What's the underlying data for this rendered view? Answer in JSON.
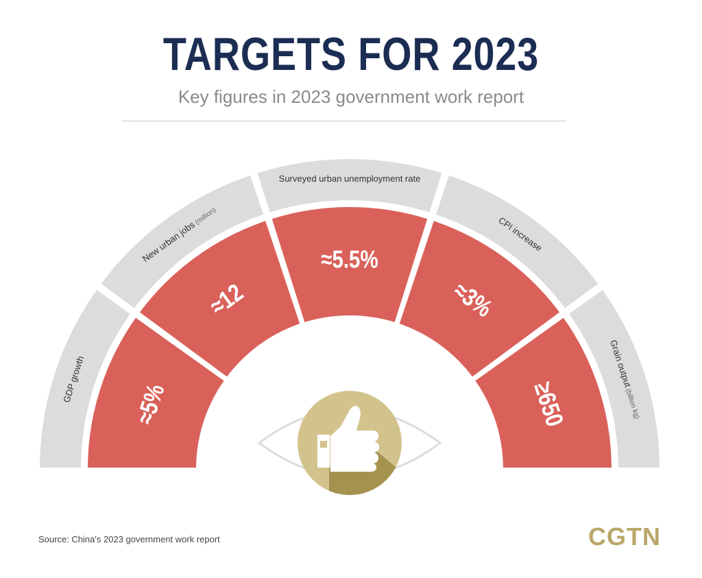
{
  "header": {
    "title": "TARGETS FOR 2023",
    "subtitle": "Key figures in 2023 government work report"
  },
  "targets": [
    {
      "label": "GDP growth",
      "unit": "",
      "value": "≈5%"
    },
    {
      "label": "New urban jobs",
      "unit": "(million)",
      "value": "≈12"
    },
    {
      "label": "Surveyed urban unemployment rate",
      "unit": "",
      "value": "≈5.5%"
    },
    {
      "label": "CPI increase",
      "unit": "",
      "value": "≈3%"
    },
    {
      "label": "Grain output",
      "unit": "(billion kg)",
      "value": "≥650"
    }
  ],
  "center_icon": "thumbs-up-eye-icon",
  "footer": {
    "source": "Source: China's 2023 government work report",
    "logo": "CGTN"
  },
  "colors": {
    "title": "#1c2d53",
    "value_segment": "#d9615a",
    "label_segment": "#dcdcdd",
    "icon_circle": "#d2c28c",
    "icon_shadow": "#a4924f",
    "logo": "#b9a76a"
  }
}
